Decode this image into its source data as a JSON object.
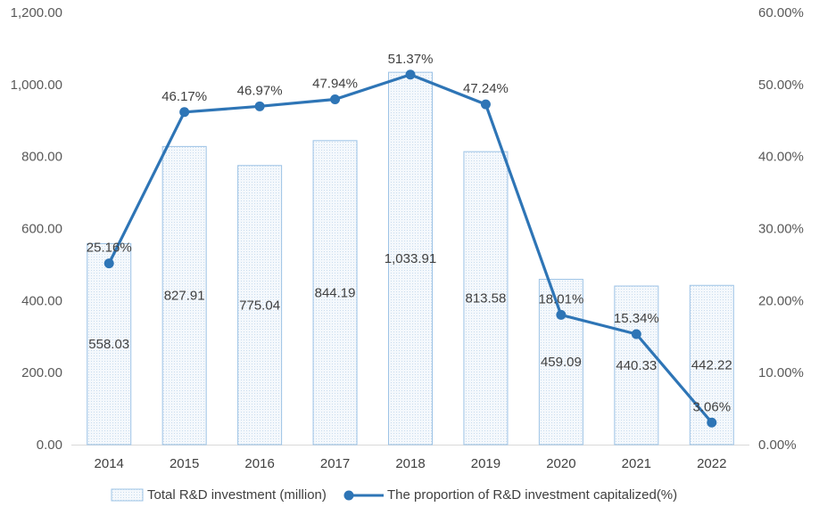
{
  "chart_data": {
    "type": "bar",
    "categories": [
      "2014",
      "2015",
      "2016",
      "2017",
      "2018",
      "2019",
      "2020",
      "2021",
      "2022"
    ],
    "series": [
      {
        "name": "Total R&D investment (million)",
        "type": "bar",
        "axis": "left",
        "values": [
          558.03,
          827.91,
          775.04,
          844.19,
          1033.91,
          813.58,
          459.09,
          440.33,
          442.22
        ],
        "labels": [
          "558.03",
          "827.91",
          "775.04",
          "844.19",
          "1,033.91",
          "813.58",
          "459.09",
          "440.33",
          "442.22"
        ],
        "color": "#9dc3e6"
      },
      {
        "name": "The proportion of R&D investment capitalized(%)",
        "type": "line",
        "axis": "right",
        "values": [
          25.16,
          46.17,
          46.97,
          47.94,
          51.37,
          47.24,
          18.01,
          15.34,
          3.06
        ],
        "labels": [
          "25.16%",
          "46.17%",
          "46.97%",
          "47.94%",
          "51.37%",
          "47.24%",
          "18.01%",
          "15.34%",
          "3.06%"
        ],
        "color": "#2e75b6"
      }
    ],
    "y_left": {
      "lim": [
        0,
        1200
      ],
      "ticks": [
        "0.00",
        "200.00",
        "400.00",
        "600.00",
        "800.00",
        "1,000.00",
        "1,200.00"
      ]
    },
    "y_right": {
      "lim": [
        0,
        60
      ],
      "ticks": [
        "0.00%",
        "10.00%",
        "20.00%",
        "30.00%",
        "40.00%",
        "50.00%",
        "60.00%"
      ]
    },
    "grid": false,
    "legend": "bottom",
    "title": "",
    "xlabel": "",
    "ylabel": ""
  }
}
